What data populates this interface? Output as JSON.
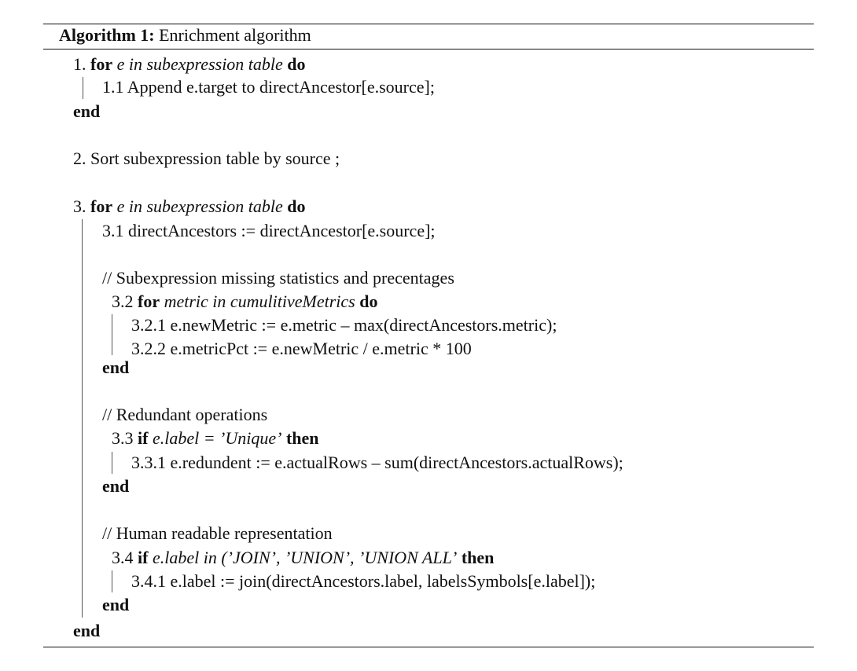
{
  "caption": {
    "label": "Algorithm 1:",
    "title": "Enrichment algorithm"
  },
  "step1": {
    "num": "1.",
    "for_kw": "for",
    "cond": "e in subexpression table",
    "do_kw": "do",
    "line_1_1": "1.1 Append e.target to directAncestor[e.source];",
    "end": "end"
  },
  "step2": {
    "text": "2. Sort subexpression table by source ;"
  },
  "step3": {
    "num": "3.",
    "for_kw": "for",
    "cond": "e in subexpression table",
    "do_kw": "do",
    "line_3_1": "3.1 directAncestors := directAncestor[e.source];",
    "comment_a": "// Subexpression missing statistics and precentages",
    "s32": {
      "num": "3.2",
      "for_kw": "for",
      "cond": "metric in cumulitiveMetrics",
      "do_kw": "do",
      "line_1": "3.2.1 e.newMetric := e.metric – max(directAncestors.metric);",
      "line_2": "3.2.2 e.metricPct := e.newMetric / e.metric * 100",
      "end": "end"
    },
    "comment_b": "// Redundant operations",
    "s33": {
      "num": "3.3",
      "if_kw": "if",
      "cond": "e.label = ’Unique’",
      "then_kw": "then",
      "line_1": "3.3.1 e.redundent := e.actualRows – sum(directAncestors.actualRows);",
      "end": "end"
    },
    "comment_c": "// Human readable representation",
    "s34": {
      "num": "3.4",
      "if_kw": "if",
      "cond": "e.label in (’JOIN’, ’UNION’, ’UNION ALL’",
      "then_kw": "then",
      "line_1": "3.4.1 e.label := join(directAncestors.label, labelsSymbols[e.label]);",
      "end": "end"
    },
    "end": "end"
  }
}
